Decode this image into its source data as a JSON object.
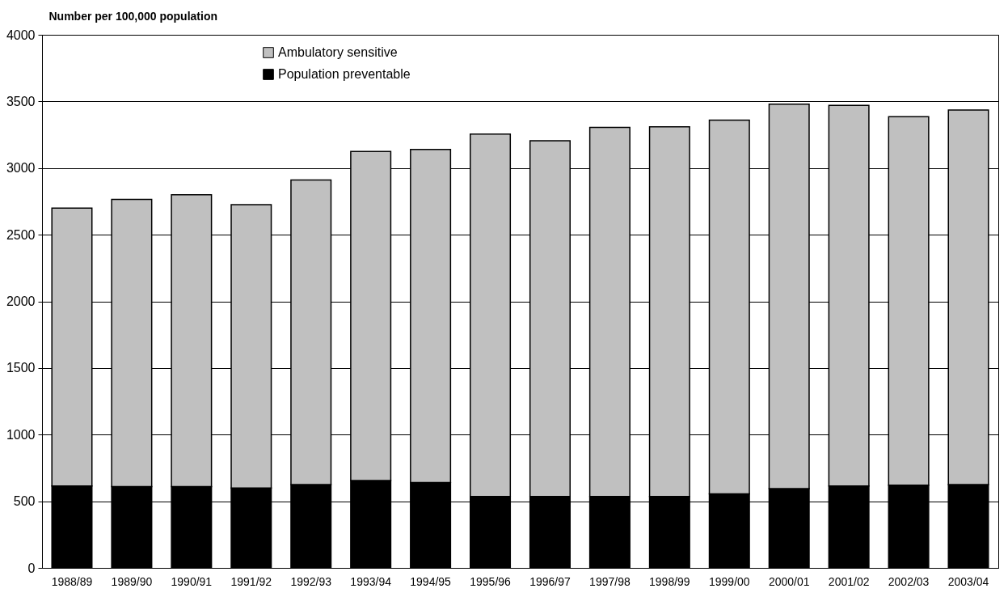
{
  "chart_data": {
    "type": "bar",
    "stacked": true,
    "ylabel": "Number per 100,000 population",
    "categories": [
      "1988/89",
      "1989/90",
      "1990/91",
      "1991/92",
      "1992/93",
      "1993/94",
      "1994/95",
      "1995/96",
      "1996/97",
      "1997/98",
      "1998/99",
      "1999/00",
      "2000/01",
      "2001/02",
      "2002/03",
      "2003/04"
    ],
    "series": [
      {
        "name": "Population preventable",
        "color": "#000000",
        "values": [
          615,
          610,
          610,
          600,
          625,
          655,
          640,
          535,
          535,
          535,
          535,
          555,
          595,
          615,
          620,
          625
        ]
      },
      {
        "name": "Ambulatory sensitive",
        "color": "#c0c0c0",
        "values": [
          2085,
          2155,
          2190,
          2125,
          2285,
          2470,
          2500,
          2720,
          2670,
          2770,
          2775,
          2805,
          2885,
          2855,
          2765,
          2810
        ]
      }
    ],
    "ylim": [
      0,
      4000
    ],
    "yticks": [
      0,
      500,
      1000,
      1500,
      2000,
      2500,
      3000,
      3500,
      4000
    ],
    "grid": "y",
    "legend": "top left"
  }
}
